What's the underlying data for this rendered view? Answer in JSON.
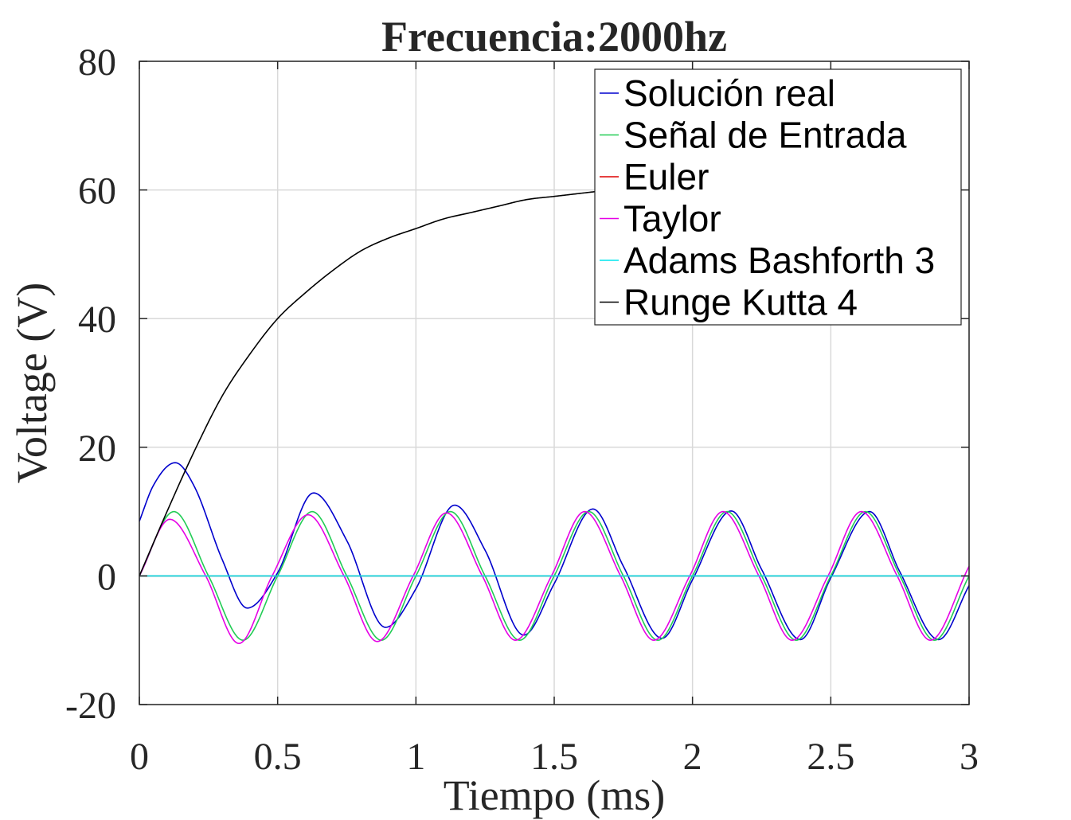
{
  "chart_data": {
    "type": "line",
    "title": "Frecuencia:2000hz",
    "xlabel": "Tiempo (ms)",
    "ylabel": "Voltage (V)",
    "xlim": [
      0,
      3
    ],
    "ylim": [
      -20,
      80
    ],
    "xticks": [
      0,
      0.5,
      1,
      1.5,
      2,
      2.5,
      3
    ],
    "xtick_labels": [
      "0",
      "0.5",
      "1",
      "1.5",
      "2",
      "2.5",
      "3"
    ],
    "yticks": [
      -20,
      0,
      20,
      40,
      60,
      80
    ],
    "ytick_labels": [
      "-20",
      "0",
      "20",
      "40",
      "60",
      "80"
    ],
    "grid": true,
    "legend_position": "top-right",
    "series": [
      {
        "name": "Solución real",
        "color": "#0000cd",
        "x": [
          0,
          0.05,
          0.13,
          0.2,
          0.3,
          0.39,
          0.5,
          0.63,
          0.75,
          0.89,
          1.0,
          1.14,
          1.25,
          1.39,
          1.5,
          1.64,
          1.75,
          1.89,
          2.0,
          2.14,
          2.25,
          2.39,
          2.5,
          2.64,
          2.75,
          2.89,
          3.0
        ],
        "y": [
          8.5,
          14.0,
          17.6,
          13.8,
          2.5,
          -5.0,
          0.5,
          12.9,
          5.5,
          -8.0,
          -2.0,
          11.0,
          4.0,
          -9.2,
          -1.2,
          10.4,
          1.5,
          -9.7,
          -0.6,
          10.1,
          1.0,
          -9.9,
          -0.3,
          10.0,
          0.6,
          -9.9,
          -1.5
        ]
      },
      {
        "name": "Señal de Entrada",
        "color": "#22cc55",
        "x": [
          0,
          0.125,
          0.25,
          0.375,
          0.5,
          0.625,
          0.75,
          0.875,
          1.0,
          1.125,
          1.25,
          1.375,
          1.5,
          1.625,
          1.75,
          1.875,
          2.0,
          2.125,
          2.25,
          2.375,
          2.5,
          2.625,
          2.75,
          2.875,
          3.0
        ],
        "y": [
          0,
          10,
          0,
          -10,
          0,
          10,
          0,
          -10,
          0,
          10,
          0,
          -10,
          0,
          10,
          0,
          -10,
          0,
          10,
          0,
          -10,
          0,
          10,
          0,
          -10,
          0
        ]
      },
      {
        "name": "Euler",
        "color": "#dd0000",
        "x": [
          0,
          3
        ],
        "y": [
          0,
          0
        ]
      },
      {
        "name": "Taylor",
        "color": "#e600e6",
        "x": [
          0,
          0.11,
          0.24,
          0.36,
          0.48,
          0.61,
          0.74,
          0.86,
          0.99,
          1.11,
          1.24,
          1.36,
          1.49,
          1.61,
          1.74,
          1.86,
          1.99,
          2.11,
          2.24,
          2.36,
          2.49,
          2.61,
          2.74,
          2.86,
          3.0
        ],
        "y": [
          0,
          8.8,
          0,
          -10.5,
          0,
          9.5,
          0,
          -10.2,
          0,
          9.8,
          0,
          -10.0,
          0,
          10.0,
          0,
          -10.0,
          0,
          10.0,
          0,
          -10.0,
          0,
          10.0,
          0,
          -10.0,
          1.5
        ]
      },
      {
        "name": "Adams Bashforth 3",
        "color": "#00e5ee",
        "x": [
          0,
          3
        ],
        "y": [
          0,
          0
        ]
      },
      {
        "name": "Runge Kutta 4",
        "color": "#000000",
        "x": [
          0,
          0.1,
          0.2,
          0.3,
          0.4,
          0.5,
          0.6,
          0.7,
          0.8,
          0.9,
          1.0,
          1.1,
          1.2,
          1.3,
          1.4,
          1.5,
          1.6,
          1.7,
          1.8,
          1.9,
          2.0
        ],
        "y": [
          0,
          10.0,
          19.5,
          28.0,
          34.5,
          40.0,
          44.0,
          47.5,
          50.5,
          52.5,
          54.0,
          55.5,
          56.5,
          57.5,
          58.5,
          59.0,
          59.5,
          60.0,
          60.5,
          60.8,
          61.0
        ]
      }
    ]
  }
}
